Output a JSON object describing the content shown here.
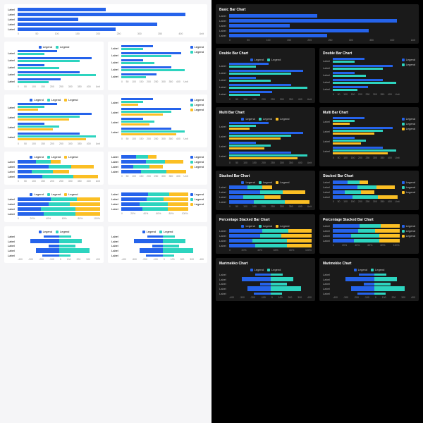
{
  "colors": {
    "c1": "#2563eb",
    "c2": "#2dd4bf",
    "c3": "#fbbf24",
    "light_bg": "#f5f5f7",
    "dark_bg": "#000000",
    "panel_light": "#ffffff",
    "panel_dark": "#1a1a1a",
    "text_dark": "#ffffff",
    "text_muted": "#888888"
  },
  "labels": {
    "category": "Label",
    "legend": "Legend"
  },
  "xaxis": {
    "numeric": [
      "0",
      "50",
      "100",
      "150",
      "200",
      "250",
      "300",
      "350",
      "400",
      "Unit"
    ],
    "percent": [
      "0",
      "20%",
      "40%",
      "60%",
      "80%",
      "100%"
    ],
    "mari": [
      "-400",
      "-300",
      "-200",
      "-100",
      "0",
      "100",
      "200",
      "300",
      "400"
    ]
  },
  "charts": {
    "basic": {
      "title": "Basic Bar Chart",
      "type": "bar",
      "series_colors": [
        "#2563eb"
      ],
      "rows": [
        {
          "label": "Label",
          "v": [
            190
          ]
        },
        {
          "label": "Label",
          "v": [
            360
          ]
        },
        {
          "label": "Label",
          "v": [
            130
          ]
        },
        {
          "label": "Label",
          "v": [
            300
          ]
        },
        {
          "label": "Label",
          "v": [
            210
          ]
        }
      ],
      "xmax": 400
    },
    "double": {
      "title": "Double Bar Chart",
      "type": "grouped",
      "series_colors": [
        "#2563eb",
        "#2dd4bf"
      ],
      "rows": [
        {
          "label": "Label",
          "v": [
            190,
            130
          ]
        },
        {
          "label": "Label",
          "v": [
            360,
            300
          ]
        },
        {
          "label": "Label",
          "v": [
            130,
            200
          ]
        },
        {
          "label": "Label",
          "v": [
            300,
            380
          ]
        },
        {
          "label": "Label",
          "v": [
            210,
            150
          ]
        }
      ],
      "xmax": 400
    },
    "multi": {
      "title": "Multi Bar Chart",
      "type": "grouped",
      "series_colors": [
        "#2563eb",
        "#2dd4bf",
        "#fbbf24"
      ],
      "rows": [
        {
          "label": "Label",
          "v": [
            190,
            130,
            100
          ]
        },
        {
          "label": "Label",
          "v": [
            360,
            300,
            250
          ]
        },
        {
          "label": "Label",
          "v": [
            130,
            200,
            170
          ]
        },
        {
          "label": "Label",
          "v": [
            300,
            380,
            330
          ]
        }
      ],
      "xmax": 400
    },
    "stacked": {
      "title": "Stacked Bar Chart",
      "type": "stacked",
      "series_colors": [
        "#2563eb",
        "#2dd4bf",
        "#fbbf24"
      ],
      "rows": [
        {
          "label": "Label",
          "v": [
            90,
            70,
            50
          ]
        },
        {
          "label": "Label",
          "v": [
            150,
            110,
            110
          ]
        },
        {
          "label": "Label",
          "v": [
            70,
            100,
            80
          ]
        },
        {
          "label": "Label",
          "v": [
            120,
            150,
            120
          ]
        }
      ],
      "xmax": 400
    },
    "pstacked": {
      "title": "Percentage Stacked Bar Chart",
      "type": "pstacked",
      "series_colors": [
        "#2563eb",
        "#2dd4bf",
        "#fbbf24"
      ],
      "rows": [
        {
          "label": "Label",
          "v": [
            40,
            32,
            28
          ]
        },
        {
          "label": "Label",
          "v": [
            38,
            25,
            37
          ]
        },
        {
          "label": "Label",
          "v": [
            28,
            42,
            30
          ]
        },
        {
          "label": "Label",
          "v": [
            32,
            38,
            30
          ]
        }
      ]
    },
    "mari": {
      "title": "Marimekko Chart",
      "type": "marimekko",
      "series_colors": [
        "#2563eb",
        "#2dd4bf"
      ],
      "rows": [
        {
          "label": "Label",
          "neg": 150,
          "pos": 120,
          "h": 3
        },
        {
          "label": "Label",
          "neg": 280,
          "pos": 220,
          "h": 6
        },
        {
          "label": "Label",
          "neg": 100,
          "pos": 160,
          "h": 4
        },
        {
          "label": "Label",
          "neg": 220,
          "pos": 300,
          "h": 7
        },
        {
          "label": "Label",
          "neg": 160,
          "pos": 110,
          "h": 3
        }
      ],
      "xmax": 400
    }
  },
  "light_layout": [
    {
      "key": "basic",
      "span": "full",
      "legendPos": "none"
    },
    {
      "key": "double",
      "legendPos": "top"
    },
    {
      "key": "double",
      "legendPos": "right"
    },
    {
      "key": "multi",
      "legendPos": "top"
    },
    {
      "key": "multi",
      "legendPos": "right"
    },
    {
      "key": "stacked",
      "legendPos": "top"
    },
    {
      "key": "stacked",
      "legendPos": "right"
    },
    {
      "key": "pstacked",
      "legendPos": "top"
    },
    {
      "key": "pstacked",
      "legendPos": "right"
    },
    {
      "key": "mari",
      "legendPos": "top"
    },
    {
      "key": "mari",
      "legendPos": "top"
    }
  ],
  "dark_layout": [
    {
      "key": "basic",
      "span": "full",
      "legendPos": "none",
      "showTitle": true
    },
    {
      "key": "double",
      "legendPos": "top",
      "showTitle": true
    },
    {
      "key": "double",
      "legendPos": "right",
      "showTitle": true
    },
    {
      "key": "multi",
      "legendPos": "top",
      "showTitle": true
    },
    {
      "key": "multi",
      "legendPos": "right",
      "showTitle": true
    },
    {
      "key": "stacked",
      "legendPos": "top",
      "showTitle": true
    },
    {
      "key": "stacked",
      "legendPos": "right",
      "showTitle": true
    },
    {
      "key": "pstacked",
      "legendPos": "top",
      "showTitle": true
    },
    {
      "key": "pstacked",
      "legendPos": "right",
      "showTitle": true
    },
    {
      "key": "mari",
      "legendPos": "top",
      "showTitle": true
    },
    {
      "key": "mari",
      "legendPos": "top",
      "showTitle": true
    }
  ]
}
